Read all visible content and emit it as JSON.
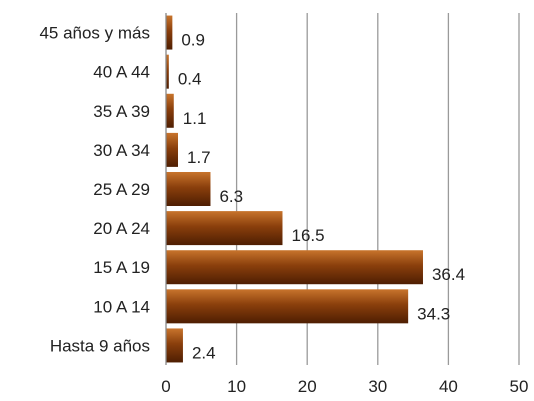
{
  "chart_data": {
    "type": "bar",
    "orientation": "horizontal",
    "categories": [
      "45 años y más",
      "40 A 44",
      "35 A 39",
      "30 A 34",
      "25 A 29",
      "20 A 24",
      "15 A 19",
      "10 A 14",
      "Hasta 9 años"
    ],
    "values": [
      0.9,
      0.4,
      1.1,
      1.7,
      6.3,
      16.5,
      36.4,
      34.3,
      2.4
    ],
    "value_labels": [
      "0.9",
      "0.4",
      "1.1",
      "1.7",
      "6.3",
      "16.5",
      "36.4",
      "34.3",
      "2.4"
    ],
    "xlim": [
      0,
      50
    ],
    "x_ticks": [
      0,
      10,
      20,
      30,
      40,
      50
    ],
    "x_tick_labels": [
      "0",
      "10",
      "20",
      "30",
      "40",
      "50"
    ],
    "grid": "vertical",
    "legend": "none",
    "colors": {
      "bar_light": "#c8742c",
      "bar_mid": "#8a3f0c",
      "bar_dark": "#4e1e02",
      "grid": "#9a9a9a",
      "axis": "#888888"
    }
  }
}
